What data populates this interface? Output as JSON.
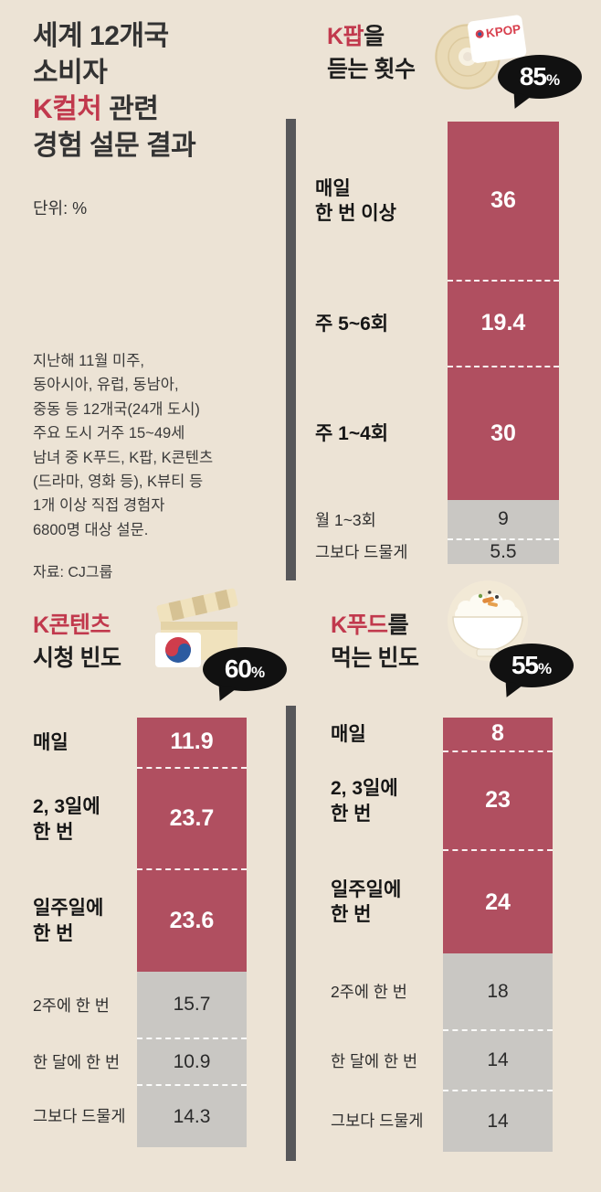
{
  "colors": {
    "background": "#ece3d5",
    "accent_red": "#c1394d",
    "bar_hot": "#b04f60",
    "bar_cool": "#c9c7c3",
    "divider": "#57575a",
    "badge_bg": "#111111"
  },
  "intro": {
    "title": {
      "line1": "세계 12개국",
      "line2": "소비자",
      "line3_red": "K컬처",
      "line3_rest": " 관련",
      "line4": "경험 설문 결과"
    },
    "unit": "단위: %",
    "description": [
      "지난해 11월 미주,",
      "동아시아, 유럽, 동남아,",
      "중동 등 12개국(24개 도시)",
      "주요 도시 거주 15~49세",
      "남녀 중 K푸드, K팝, K콘텐츠",
      "(드라마, 영화 등), K뷰티 등",
      "1개 이상 직접 경험자",
      "6800명 대상 설문."
    ],
    "source": "자료: CJ그룹"
  },
  "icons": {
    "kpop_label": "KPOP"
  },
  "chart_data": [
    {
      "type": "stacked-bar",
      "title": "K팝을 듣는 횟수",
      "title_red": "K팝",
      "title_suffix": "을",
      "title_line2": "듣는 횟수",
      "badge_value": "85",
      "badge_unit": "%",
      "unit": "%",
      "segments": [
        {
          "label": "매일\n한 번 이상",
          "value": 36,
          "group": "hot"
        },
        {
          "label": "주 5~6회",
          "value": 19.4,
          "group": "hot"
        },
        {
          "label": "주 1~4회",
          "value": 30,
          "group": "hot"
        },
        {
          "label": "월 1~3회",
          "value": 9,
          "group": "cool"
        },
        {
          "label": "그보다 드물게",
          "value": 5.5,
          "group": "cool"
        }
      ]
    },
    {
      "type": "stacked-bar",
      "title": "K콘텐츠 시청 빈도",
      "title_red": "K콘텐츠",
      "title_suffix": "",
      "title_line2": "시청 빈도",
      "badge_value": "60",
      "badge_unit": "%",
      "unit": "%",
      "segments": [
        {
          "label": "매일",
          "value": 11.9,
          "group": "hot"
        },
        {
          "label": "2, 3일에\n한 번",
          "value": 23.7,
          "group": "hot"
        },
        {
          "label": "일주일에\n한 번",
          "value": 23.6,
          "group": "hot"
        },
        {
          "label": "2주에 한 번",
          "value": 15.7,
          "group": "cool"
        },
        {
          "label": "한 달에 한 번",
          "value": 10.9,
          "group": "cool"
        },
        {
          "label": "그보다 드물게",
          "value": 14.3,
          "group": "cool"
        }
      ]
    },
    {
      "type": "stacked-bar",
      "title": "K푸드를 먹는 빈도",
      "title_red": "K푸드",
      "title_suffix": "를",
      "title_line2": "먹는 빈도",
      "badge_value": "55",
      "badge_unit": "%",
      "unit": "%",
      "segments": [
        {
          "label": "매일",
          "value": 8,
          "group": "hot"
        },
        {
          "label": "2, 3일에\n한 번",
          "value": 23,
          "group": "hot"
        },
        {
          "label": "일주일에\n한 번",
          "value": 24,
          "group": "hot"
        },
        {
          "label": "2주에 한 번",
          "value": 18,
          "group": "cool"
        },
        {
          "label": "한 달에 한 번",
          "value": 14,
          "group": "cool"
        },
        {
          "label": "그보다 드물게",
          "value": 14,
          "group": "cool"
        }
      ]
    }
  ]
}
